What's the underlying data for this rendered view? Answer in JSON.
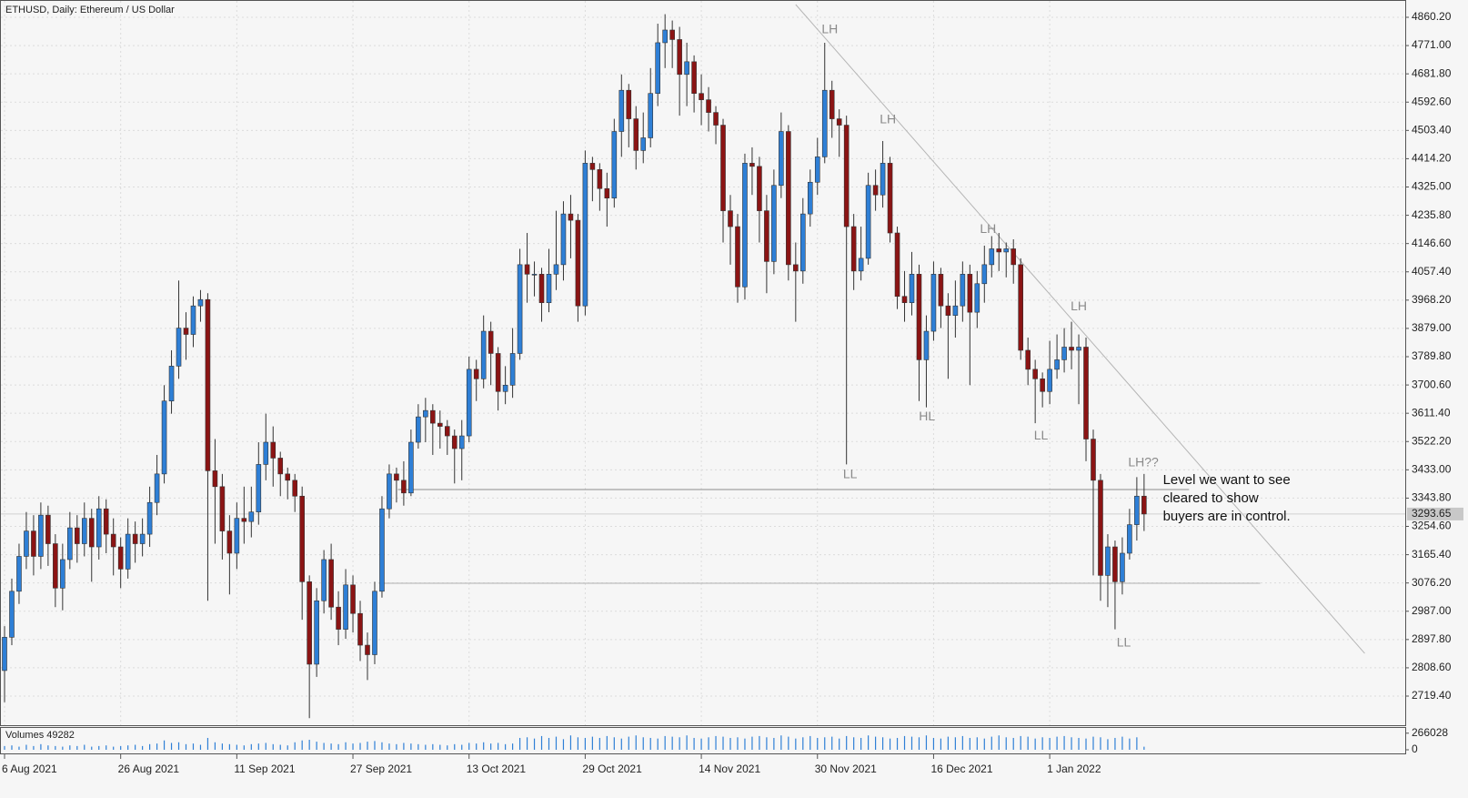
{
  "chart_data": {
    "type": "candlestick",
    "title": "ETHUSD, Daily:  Ethereum / US Dollar",
    "volume_label": "Volumes 49282",
    "up_color": "#2e7fd6",
    "down_color": "#8b1414",
    "volume_color": "#2e7fd6",
    "grid": true,
    "categories": [
      "6 Aug 2021",
      null,
      null,
      null,
      null,
      null,
      null,
      null,
      null,
      null,
      null,
      null,
      null,
      null,
      null,
      null,
      "26 Aug 2021",
      null,
      null,
      null,
      null,
      null,
      null,
      null,
      null,
      null,
      null,
      null,
      null,
      null,
      null,
      null,
      "11 Sep 2021",
      null,
      null,
      null,
      null,
      null,
      null,
      null,
      null,
      null,
      null,
      null,
      null,
      null,
      null,
      null,
      "27 Sep 2021",
      null,
      null,
      null,
      null,
      null,
      null,
      null,
      null,
      null,
      null,
      null,
      null,
      null,
      null,
      null,
      "13 Oct 2021",
      null,
      null,
      null,
      null,
      null,
      null,
      null,
      null,
      null,
      null,
      null,
      null,
      null,
      null,
      null,
      "29 Oct 2021",
      null,
      null,
      null,
      null,
      null,
      null,
      null,
      null,
      null,
      null,
      null,
      null,
      null,
      null,
      null,
      "14 Nov 2021",
      null,
      null,
      null,
      null,
      null,
      null,
      null,
      null,
      null,
      null,
      null,
      null,
      null,
      null,
      null,
      "30 Nov 2021",
      null,
      null,
      null,
      null,
      null,
      null,
      null,
      null,
      null,
      null,
      null,
      null,
      null,
      null,
      null,
      "16 Dec 2021",
      null,
      null,
      null,
      null,
      null,
      null,
      null,
      null,
      null,
      null,
      null,
      null,
      null,
      null,
      null,
      "1 Jan 2022",
      null,
      null,
      null,
      null,
      null,
      null,
      null,
      null,
      null,
      null,
      null,
      null,
      null
    ],
    "open": [
      2800,
      2905,
      3050,
      3160,
      3240,
      3160,
      3290,
      3200,
      3060,
      3150,
      3250,
      3200,
      3280,
      3190,
      3310,
      3230,
      3190,
      3120,
      3230,
      3200,
      3230,
      3330,
      3420,
      3650,
      3760,
      3880,
      3860,
      3950,
      3970,
      3430,
      3380,
      3240,
      3170,
      3280,
      3270,
      3300,
      3450,
      3520,
      3470,
      3420,
      3400,
      3350,
      3080,
      2820,
      3020,
      3150,
      3000,
      2930,
      3070,
      2980,
      2880,
      2850,
      3050,
      3310,
      3420,
      3400,
      3360,
      3520,
      3600,
      3620,
      3580,
      3570,
      3540,
      3500,
      3540,
      3750,
      3720,
      3870,
      3800,
      3680,
      3700,
      3800,
      4080,
      4050,
      4050,
      3960,
      4050,
      4080,
      4240,
      4220,
      3950,
      4400,
      4380,
      4320,
      4290,
      4500,
      4630,
      4540,
      4440,
      4480,
      4620,
      4780,
      4820,
      4790,
      4680,
      4720,
      4620,
      4600,
      4560,
      4520,
      4250,
      4200,
      4010,
      4400,
      4390,
      4250,
      4090,
      4330,
      4500,
      4080,
      4060,
      4240,
      4340,
      4420,
      4630,
      4540,
      4520,
      4200,
      4060,
      4100,
      4330,
      4300,
      4400,
      4180,
      3980,
      3960,
      4050,
      3780,
      3870,
      4050,
      3950,
      3920,
      3950,
      4050,
      3930,
      4020,
      4080,
      4130,
      4120,
      4130,
      4080,
      3810,
      3750,
      3720,
      3680,
      3750,
      3780,
      3820,
      3810,
      3820,
      3530,
      3400,
      3100,
      3190,
      3080,
      3170,
      3260,
      3350
    ],
    "high": [
      2940,
      3090,
      3200,
      3300,
      3290,
      3330,
      3320,
      3230,
      3200,
      3300,
      3290,
      3330,
      3310,
      3350,
      3340,
      3280,
      3220,
      3280,
      3270,
      3280,
      3380,
      3480,
      3700,
      3810,
      4030,
      3930,
      3980,
      4000,
      3990,
      3530,
      3420,
      3290,
      3330,
      3380,
      3380,
      3520,
      3610,
      3570,
      3490,
      3440,
      3420,
      3380,
      3100,
      3060,
      3180,
      3200,
      3050,
      3120,
      3100,
      3020,
      2920,
      3080,
      3350,
      3450,
      3440,
      3460,
      3560,
      3640,
      3660,
      3640,
      3620,
      3590,
      3560,
      3590,
      3790,
      3780,
      3920,
      3900,
      3820,
      3760,
      3880,
      4130,
      4180,
      4090,
      4070,
      4130,
      4250,
      4280,
      4300,
      4240,
      4440,
      4420,
      4400,
      4370,
      4540,
      4680,
      4650,
      4580,
      4560,
      4700,
      4840,
      4870,
      4850,
      4830,
      4780,
      4740,
      4680,
      4640,
      4580,
      4540,
      4300,
      4240,
      4430,
      4450,
      4420,
      4300,
      4380,
      4560,
      4520,
      4150,
      4290,
      4380,
      4480,
      4780,
      4660,
      4570,
      4550,
      4240,
      4200,
      4370,
      4380,
      4470,
      4420,
      4200,
      4060,
      4120,
      4080,
      3920,
      4090,
      4070,
      3990,
      4030,
      4090,
      4080,
      4060,
      4140,
      4170,
      4180,
      4150,
      4160,
      4100,
      3850,
      3780,
      3740,
      3840,
      3860,
      3880,
      3900,
      3860,
      3850,
      3560,
      3420,
      3230,
      3210,
      3220,
      3310,
      3410,
      3420
    ],
    "low": [
      2700,
      2880,
      3010,
      3120,
      3100,
      3120,
      3130,
      3000,
      2990,
      3120,
      3140,
      3160,
      3080,
      3150,
      3170,
      3100,
      3060,
      3090,
      3140,
      3160,
      3190,
      3290,
      3390,
      3610,
      3720,
      3780,
      3820,
      3900,
      3020,
      3200,
      3150,
      3040,
      3120,
      3200,
      3220,
      3260,
      3400,
      3380,
      3350,
      3340,
      3300,
      2960,
      2650,
      2780,
      2980,
      2960,
      2880,
      2900,
      2920,
      2830,
      2770,
      2820,
      3030,
      3280,
      3330,
      3320,
      3350,
      3500,
      3520,
      3480,
      3500,
      3480,
      3390,
      3400,
      3520,
      3650,
      3690,
      3700,
      3620,
      3640,
      3660,
      3780,
      3960,
      3980,
      3900,
      3930,
      4000,
      4030,
      4100,
      3900,
      3920,
      4280,
      4250,
      4200,
      4260,
      4420,
      4450,
      4380,
      4400,
      4450,
      4580,
      4700,
      4700,
      4550,
      4580,
      4560,
      4520,
      4500,
      4460,
      4150,
      4080,
      3960,
      3970,
      4300,
      4150,
      3990,
      4050,
      4290,
      4030,
      3900,
      4020,
      4200,
      4300,
      4400,
      4480,
      4420,
      3450,
      4000,
      4030,
      4080,
      4250,
      4260,
      4150,
      3940,
      3900,
      3920,
      3650,
      3630,
      3840,
      3880,
      3720,
      3850,
      3900,
      3700,
      3880,
      3960,
      4040,
      4060,
      4040,
      4020,
      3780,
      3700,
      3580,
      3630,
      3640,
      3720,
      3740,
      3750,
      3640,
      3460,
      3100,
      3020,
      3000,
      2930,
      3040,
      3150,
      3210,
      3240
    ],
    "close": [
      2905,
      3050,
      3160,
      3240,
      3160,
      3290,
      3200,
      3060,
      3150,
      3250,
      3200,
      3280,
      3190,
      3310,
      3230,
      3190,
      3120,
      3230,
      3200,
      3230,
      3330,
      3420,
      3650,
      3760,
      3880,
      3860,
      3950,
      3970,
      3430,
      3380,
      3240,
      3170,
      3280,
      3270,
      3300,
      3450,
      3520,
      3470,
      3420,
      3400,
      3350,
      3080,
      2820,
      3020,
      3150,
      3000,
      2930,
      3070,
      2980,
      2880,
      2850,
      3050,
      3310,
      3420,
      3400,
      3360,
      3520,
      3600,
      3620,
      3580,
      3570,
      3540,
      3500,
      3540,
      3750,
      3720,
      3870,
      3800,
      3680,
      3700,
      3800,
      4080,
      4050,
      4050,
      3960,
      4050,
      4080,
      4240,
      4220,
      3950,
      4400,
      4380,
      4320,
      4290,
      4500,
      4630,
      4540,
      4440,
      4480,
      4620,
      4780,
      4820,
      4790,
      4680,
      4720,
      4620,
      4600,
      4560,
      4520,
      4250,
      4200,
      4010,
      4400,
      4390,
      4250,
      4090,
      4330,
      4500,
      4080,
      4060,
      4240,
      4340,
      4420,
      4630,
      4540,
      4520,
      4200,
      4060,
      4100,
      4330,
      4300,
      4400,
      4180,
      3980,
      3960,
      4050,
      3780,
      3870,
      4050,
      3950,
      3920,
      3950,
      4050,
      3930,
      4020,
      4080,
      4130,
      4120,
      4130,
      4080,
      3810,
      3750,
      3720,
      3680,
      3750,
      3780,
      3820,
      3810,
      3820,
      3530,
      3400,
      3100,
      3190,
      3080,
      3170,
      3260,
      3350,
      3293.65
    ],
    "volume": [
      60000,
      70000,
      50000,
      80000,
      60000,
      90000,
      70000,
      60000,
      50000,
      70000,
      60000,
      80000,
      50000,
      60000,
      70000,
      50000,
      60000,
      70000,
      80000,
      60000,
      90000,
      100000,
      150000,
      110000,
      120000,
      90000,
      100000,
      80000,
      190000,
      120000,
      100000,
      90000,
      80000,
      70000,
      90000,
      100000,
      110000,
      90000,
      80000,
      70000,
      120000,
      150000,
      160000,
      130000,
      110000,
      100000,
      90000,
      120000,
      100000,
      110000,
      130000,
      140000,
      120000,
      100000,
      90000,
      110000,
      100000,
      90000,
      80000,
      90000,
      80000,
      70000,
      90000,
      80000,
      110000,
      100000,
      120000,
      100000,
      110000,
      90000,
      100000,
      190000,
      200000,
      180000,
      220000,
      190000,
      210000,
      170000,
      230000,
      200000,
      190000,
      210000,
      190000,
      220000,
      200000,
      180000,
      210000,
      230000,
      200000,
      190000,
      180000,
      220000,
      210000,
      200000,
      230000,
      190000,
      180000,
      200000,
      220000,
      210000,
      190000,
      200000,
      180000,
      210000,
      220000,
      200000,
      190000,
      230000,
      210000,
      180000,
      200000,
      220000,
      190000,
      200000,
      210000,
      180000,
      220000,
      200000,
      190000,
      230000,
      210000,
      200000,
      180000,
      190000,
      220000,
      210000,
      200000,
      230000,
      190000,
      180000,
      210000,
      200000,
      220000,
      190000,
      200000,
      180000,
      210000,
      230000,
      200000,
      190000,
      220000,
      210000,
      180000,
      200000,
      190000,
      210000,
      220000,
      200000,
      190000,
      180000,
      210000,
      200000,
      170000,
      190000,
      210000,
      180000,
      200000,
      49282
    ],
    "ylim": [
      2627.6,
      4914.7
    ],
    "yticks": [
      {
        "value": 4860.2,
        "label": "4860.20"
      },
      {
        "value": 4771,
        "label": "4771.00"
      },
      {
        "value": 4681.8,
        "label": "4681.80"
      },
      {
        "value": 4592.6,
        "label": "4592.60"
      },
      {
        "value": 4503.4,
        "label": "4503.40"
      },
      {
        "value": 4414.2,
        "label": "4414.20"
      },
      {
        "value": 4325,
        "label": "4325.00"
      },
      {
        "value": 4235.8,
        "label": "4235.80"
      },
      {
        "value": 4146.6,
        "label": "4146.60"
      },
      {
        "value": 4057.4,
        "label": "4057.40"
      },
      {
        "value": 3968.2,
        "label": "3968.20"
      },
      {
        "value": 3879,
        "label": "3879.00"
      },
      {
        "value": 3789.8,
        "label": "3789.80"
      },
      {
        "value": 3700.6,
        "label": "3700.60"
      },
      {
        "value": 3611.4,
        "label": "3611.40"
      },
      {
        "value": 3522.2,
        "label": "3522.20"
      },
      {
        "value": 3433,
        "label": "3433.00"
      },
      {
        "value": 3343.8,
        "label": "3343.80"
      },
      {
        "value": 3254.6,
        "label": "3254.60"
      },
      {
        "value": 3165.4,
        "label": "3165.40"
      },
      {
        "value": 3076.2,
        "label": "3076.20"
      },
      {
        "value": 2987,
        "label": "2987.00"
      },
      {
        "value": 2897.8,
        "label": "2897.80"
      },
      {
        "value": 2808.6,
        "label": "2808.60"
      },
      {
        "value": 2719.4,
        "label": "2719.40"
      }
    ],
    "vlim": [
      0,
      350000
    ],
    "vticks": [
      266028,
      0
    ],
    "last_price": {
      "value": 3293.65,
      "label": "3293.65"
    },
    "annotations": [
      {
        "text": "LH",
        "x": 113.7,
        "y": 4820
      },
      {
        "text": "LH",
        "x": 121.7,
        "y": 4536
      },
      {
        "text": "LH",
        "x": 135.5,
        "y": 4191
      },
      {
        "text": "LH",
        "x": 148,
        "y": 3947
      },
      {
        "text": "LH??",
        "x": 156.9,
        "y": 3454
      },
      {
        "text": "LL",
        "x": 116.5,
        "y": 3417
      },
      {
        "text": "HL",
        "x": 127.1,
        "y": 3600
      },
      {
        "text": "LL",
        "x": 142.8,
        "y": 3540
      },
      {
        "text": "LL",
        "x": 154.2,
        "y": 2886
      }
    ],
    "note": {
      "text": [
        "Level we want to see",
        "cleared to show",
        "buyers are in control."
      ],
      "x": 159.6,
      "y": 3400
    },
    "lines": [
      {
        "x1": 109,
        "y1": 4900.4,
        "x2": 187.4,
        "y2": 2854,
        "color": "#b5b5b5"
      },
      {
        "x1": 54.2,
        "y1": 3370.8,
        "x2": 163.2,
        "y2": 3370.8,
        "color": "#8c8c8c"
      },
      {
        "x1": 51.6,
        "y1": 3075.2,
        "x2": 173,
        "y2": 3075.2,
        "color": "#b0b0b0"
      }
    ]
  }
}
